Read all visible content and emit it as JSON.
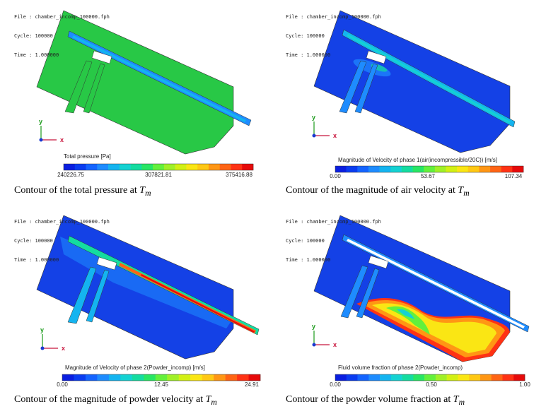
{
  "header": {
    "file": "File : chamber_incomp_100000.fph",
    "cycle": "Cycle: 100000",
    "time": "Time : 1.000000"
  },
  "axes": {
    "x": "x",
    "y": "y"
  },
  "panels": [
    {
      "quantity": "Total pressure [Pa]",
      "ticks": [
        "240226.75",
        "307821.81",
        "375416.88"
      ],
      "caption": "Contour of the total pressure at ",
      "caption_var": "T",
      "caption_sub": "m"
    },
    {
      "quantity": "Magnitude of Velocity of phase 1(air(incompressible/20C)) [m/s]",
      "ticks": [
        "0.00",
        "53.67",
        "107.34"
      ],
      "caption": "Contour of the magnitude of air velocity at ",
      "caption_var": "T",
      "caption_sub": "m"
    },
    {
      "quantity": "Magnitude of Velocity of phase 2(Powder_incomp) [m/s]",
      "ticks": [
        "0.00",
        "12.45",
        "24.91"
      ],
      "caption": "Contour of the magnitude of powder velocity at ",
      "caption_var": "T",
      "caption_sub": "m"
    },
    {
      "quantity": "Fluid volume fraction of phase 2(Powder_incomp)",
      "ticks": [
        "0.00",
        "0.50",
        "1.00"
      ],
      "caption": "Contour of the powder volume fraction at ",
      "caption_var": "T",
      "caption_sub": "m"
    }
  ],
  "colormap": [
    "#0a1ee0",
    "#0a3cf0",
    "#1464ff",
    "#1e8cff",
    "#14b4f0",
    "#14d2d2",
    "#14dca0",
    "#28e664",
    "#64f03c",
    "#a0f028",
    "#d2f014",
    "#fae614",
    "#ffc814",
    "#ff9614",
    "#ff6414",
    "#ff3214",
    "#e60a0a"
  ],
  "colors": {
    "domain_blue": "#1441e6",
    "pressure_green": "#28c846",
    "channel_white": "#ffffff"
  }
}
